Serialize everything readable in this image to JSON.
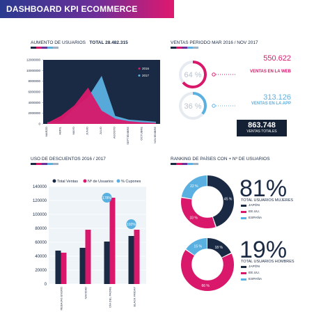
{
  "header": {
    "title": "DASHBOARD KPI ECOMMERCE"
  },
  "colors": {
    "navy": "#1b2a44",
    "pink": "#d9186b",
    "blue": "#5ab0e0",
    "light": "#dfe9f2"
  },
  "colorbar": [
    "#1b2a44",
    "#d9186b",
    "#6d2f99",
    "#5ab0e0",
    "#9fb0c2"
  ],
  "users_section": {
    "title": "AUMENTO DE USUARIOS",
    "total": "TOTAL 28.482.315"
  },
  "sales_section": {
    "title": "VENTAS  PERIODO MAR 2016 / NOV 2017",
    "web": {
      "percent": "64 %",
      "value": "550.622",
      "label": "VENTAS EN LA WEB"
    },
    "app": {
      "percent": "36 %",
      "value": "313.126",
      "label": "VENTAS EN LA APP"
    },
    "total": {
      "value": "863.748",
      "label": "VENTAS TOTALES"
    }
  },
  "discounts_section": {
    "title": "USO DE DESCUENTOS 2016 / 2017"
  },
  "ranking_section": {
    "title": "RANKING DE PAÍSES CON + Nº DE USUARIOS",
    "women": {
      "percent": "81%",
      "label": "TOTAL USUARIOS MUJERES",
      "slices": [
        "45 %",
        "22 %",
        "33 %"
      ]
    },
    "men": {
      "percent": "19%",
      "label": "TOTAL USUARIOS HOMBRES",
      "slices": [
        "18 %",
        "15 %",
        "66 %"
      ]
    },
    "legend": [
      "JAPÓN",
      "EE.UU.",
      "ESPAÑA"
    ]
  },
  "chart_data": [
    {
      "type": "area",
      "title": "AUMENTO DE USUARIOS",
      "categories": [
        "MARZO",
        "ABRIL",
        "MAYO",
        "JUNIO",
        "JULIO",
        "AGOSTO",
        "SEPTIEMBRE",
        "OCTUBRE",
        "NOVIEMBRE"
      ],
      "series": [
        {
          "name": "2016",
          "values": [
            200000,
            1500000,
            3500000,
            6800000,
            2500000,
            1000000,
            500000,
            300000,
            200000
          ]
        },
        {
          "name": "2017",
          "values": [
            300000,
            500000,
            3000000,
            5000000,
            9000000,
            1500000,
            800000,
            600000,
            400000
          ]
        }
      ],
      "ylim": [
        0,
        12000000
      ],
      "yticks": [
        "0",
        "2000000",
        "4000000",
        "6000000",
        "8000000",
        "10000000",
        "12000000"
      ],
      "legend_position": "top-right"
    },
    {
      "type": "bar",
      "title": "USO DE DESCUENTOS 2016 / 2017",
      "categories": [
        "REBAJAS ENERO",
        "NAVIDAD",
        "DÍA DEL PADRE",
        "BLACK FRIDAY"
      ],
      "series": [
        {
          "name": "Total Ventas",
          "values": [
            48000,
            52000,
            61000,
            69000
          ]
        },
        {
          "name": "Nº de Usuarios",
          "values": [
            45000,
            78000,
            124000,
            78000
          ]
        },
        {
          "name": "% Cupones",
          "values": [
            null,
            null,
            178,
            192
          ]
        }
      ],
      "point_labels": [
        "178%",
        "192%"
      ],
      "ylim": [
        0,
        140000
      ],
      "yticks": [
        "0",
        "20000",
        "40000",
        "60000",
        "80000",
        "100000",
        "120000",
        "140000"
      ],
      "legend_position": "top"
    },
    {
      "type": "pie",
      "title": "TOTAL USUARIOS MUJERES",
      "labels": [
        "JAPÓN",
        "EE.UU.",
        "ESPAÑA"
      ],
      "values": [
        45,
        33,
        22
      ]
    },
    {
      "type": "pie",
      "title": "TOTAL USUARIOS HOMBRES",
      "labels": [
        "JAPÓN",
        "EE.UU.",
        "ESPAÑA"
      ],
      "values": [
        18,
        66,
        15
      ]
    }
  ]
}
